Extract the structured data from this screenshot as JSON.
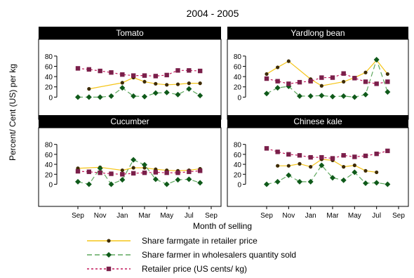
{
  "figure": {
    "title": "2004 - 2005",
    "ylabel": "Percent/ Cent (US) per kg",
    "xlabel": "Month of selling"
  },
  "legend": [
    {
      "key": "farmgate",
      "label": "Share farmgate in retailer price"
    },
    {
      "key": "wholesale",
      "label": "Share farmer in wholesalers quantity sold"
    },
    {
      "key": "retail",
      "label": "Retailer price (US cents/ kg)"
    }
  ],
  "colors": {
    "farmgate_line": "#f5c518",
    "farmgate_marker": "#3d2a00",
    "wholesale_line": "#5fa85f",
    "wholesale_marker": "#0f5a1a",
    "retail_line": "#c2185b",
    "retail_marker": "#7a1f4a",
    "panel_header": "#000000",
    "panel_header_text": "#ffffff"
  },
  "chart_data": [
    {
      "type": "line",
      "title": "Tomato",
      "x_ticks": [
        "Sep",
        "Nov",
        "Jan",
        "Mar",
        "May",
        "Jul",
        "Sep"
      ],
      "y_ticks": [
        0,
        20,
        40,
        60,
        80
      ],
      "ylim": [
        -5,
        88
      ],
      "series": [
        {
          "key": "farmgate",
          "x": [
            "Oct",
            "Jan",
            "Feb",
            "Mar",
            "Apr",
            "May",
            "Jun",
            "Jul",
            "Aug"
          ],
          "values": [
            16,
            28,
            38,
            30,
            26,
            24,
            25,
            27,
            27
          ]
        },
        {
          "key": "wholesale",
          "x": [
            "Sep",
            "Oct",
            "Nov",
            "Dec",
            "Jan",
            "Feb",
            "Mar",
            "Apr",
            "May",
            "Jun",
            "Jul",
            "Aug"
          ],
          "values": [
            0,
            0,
            0,
            2,
            18,
            2,
            1,
            8,
            9,
            5,
            16,
            3
          ]
        },
        {
          "key": "retail",
          "x": [
            "Sep",
            "Oct",
            "Nov",
            "Dec",
            "Jan",
            "Feb",
            "Mar",
            "Apr",
            "May",
            "Jun",
            "Jul",
            "Aug"
          ],
          "values": [
            56,
            54,
            51,
            48,
            44,
            42,
            42,
            41,
            43,
            52,
            52,
            51
          ]
        }
      ]
    },
    {
      "type": "line",
      "title": "Yardlong bean",
      "x_ticks": [
        "Sep",
        "Nov",
        "Jan",
        "Mar",
        "May",
        "Jul",
        "Sep"
      ],
      "y_ticks": [
        0,
        20,
        40,
        60,
        80
      ],
      "ylim": [
        -5,
        88
      ],
      "series": [
        {
          "key": "farmgate",
          "x": [
            "Sep",
            "Oct",
            "Nov",
            "Jan",
            "Feb",
            "Apr",
            "May",
            "Jun",
            "Jul",
            "Aug"
          ],
          "values": [
            45,
            58,
            70,
            35,
            22,
            30,
            38,
            48,
            72,
            45
          ]
        },
        {
          "key": "wholesale",
          "x": [
            "Sep",
            "Oct",
            "Nov",
            "Dec",
            "Jan",
            "Feb",
            "Mar",
            "Apr",
            "May",
            "Jun",
            "Jul",
            "Aug"
          ],
          "values": [
            7,
            18,
            21,
            2,
            2,
            3,
            1,
            2,
            0,
            5,
            73,
            10
          ]
        },
        {
          "key": "retail",
          "x": [
            "Sep",
            "Oct",
            "Nov",
            "Dec",
            "Jan",
            "Feb",
            "Mar",
            "Apr",
            "May",
            "Jun",
            "Jul",
            "Aug"
          ],
          "values": [
            36,
            31,
            26,
            29,
            31,
            38,
            38,
            46,
            37,
            30,
            26,
            30
          ]
        }
      ]
    },
    {
      "type": "line",
      "title": "Cucumber",
      "x_ticks": [
        "Sep",
        "Nov",
        "Jan",
        "Mar",
        "May",
        "Jul",
        "Sep"
      ],
      "y_ticks": [
        0,
        20,
        40,
        60,
        80
      ],
      "ylim": [
        -5,
        88
      ],
      "series": [
        {
          "key": "farmgate",
          "x": [
            "Sep",
            "Nov",
            "Jan",
            "Feb",
            "Mar",
            "Apr",
            "May",
            "Jun",
            "Jul",
            "Aug"
          ],
          "values": [
            32,
            34,
            28,
            33,
            33,
            30,
            28,
            27,
            28,
            31
          ]
        },
        {
          "key": "wholesale",
          "x": [
            "Sep",
            "Oct",
            "Nov",
            "Dec",
            "Jan",
            "Feb",
            "Mar",
            "Apr",
            "May",
            "Jun",
            "Jul",
            "Aug"
          ],
          "values": [
            5,
            0,
            32,
            0,
            9,
            49,
            39,
            10,
            0,
            9,
            10,
            3
          ]
        },
        {
          "key": "retail",
          "x": [
            "Sep",
            "Oct",
            "Nov",
            "Dec",
            "Jan",
            "Feb",
            "Mar",
            "Apr",
            "May",
            "Jun",
            "Jul",
            "Aug"
          ],
          "values": [
            26,
            25,
            23,
            21,
            20,
            22,
            23,
            24,
            23,
            23,
            25,
            27
          ]
        }
      ]
    },
    {
      "type": "line",
      "title": "Chinese kale",
      "x_ticks": [
        "Sep",
        "Nov",
        "Jan",
        "Mar",
        "May",
        "Jul",
        "Sep"
      ],
      "y_ticks": [
        0,
        20,
        40,
        60,
        80
      ],
      "ylim": [
        -5,
        88
      ],
      "series": [
        {
          "key": "farmgate",
          "x": [
            "Oct",
            "Nov",
            "Dec",
            "Jan",
            "Feb",
            "Mar",
            "Apr",
            "May",
            "Jun",
            "Jul"
          ],
          "values": [
            37,
            37,
            41,
            35,
            50,
            48,
            35,
            38,
            27,
            24
          ]
        },
        {
          "key": "wholesale",
          "x": [
            "Sep",
            "Oct",
            "Nov",
            "Dec",
            "Jan",
            "Feb",
            "Mar",
            "Apr",
            "May",
            "Jun",
            "Jul",
            "Aug"
          ],
          "values": [
            0,
            5,
            18,
            5,
            5,
            38,
            13,
            8,
            24,
            2,
            3,
            0
          ]
        },
        {
          "key": "retail",
          "x": [
            "Sep",
            "Oct",
            "Nov",
            "Dec",
            "Jan",
            "Feb",
            "Mar",
            "Apr",
            "May",
            "Jun",
            "Jul",
            "Aug"
          ],
          "values": [
            72,
            65,
            60,
            58,
            54,
            54,
            52,
            58,
            55,
            57,
            61,
            67
          ]
        }
      ]
    }
  ]
}
